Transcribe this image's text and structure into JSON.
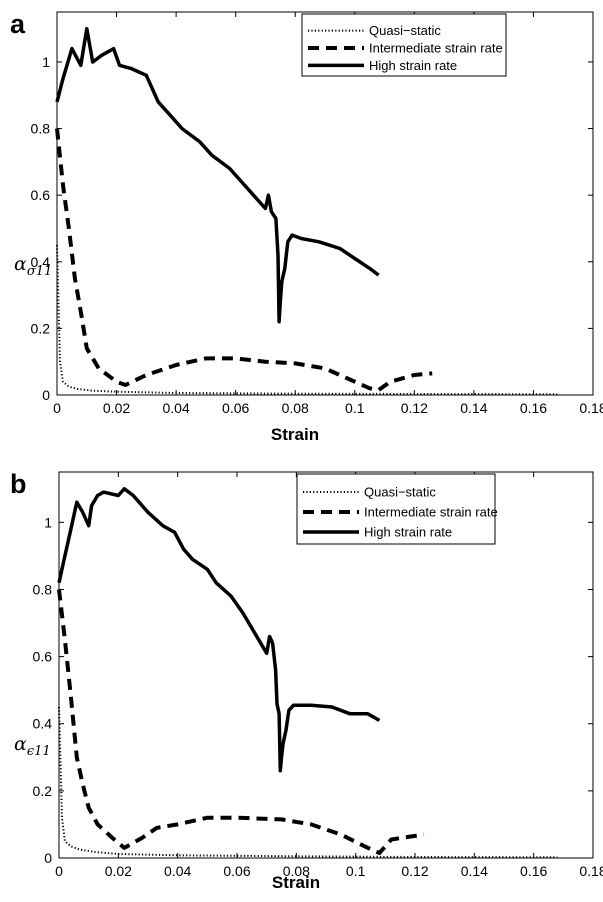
{
  "chart_data": [
    {
      "panel": "a",
      "type": "line",
      "xlabel": "Strain",
      "ylabel_base": "α",
      "ylabel_sub": "σ11",
      "xlim": [
        0,
        0.18
      ],
      "ylim": [
        0,
        1.15
      ],
      "xticks": [
        0,
        0.02,
        0.04,
        0.06,
        0.08,
        0.1,
        0.12,
        0.14,
        0.16,
        0.18
      ],
      "xtick_labels": [
        "0",
        "0.02",
        "0.04",
        "0.06",
        "0.08",
        "0.1",
        "0.12",
        "0.14",
        "0.16",
        "0.18"
      ],
      "yticks": [
        0,
        0.2,
        0.4,
        0.6,
        0.8,
        1
      ],
      "ytick_labels": [
        "0",
        "0.2",
        "0.4",
        "0.6",
        "0.8",
        "1"
      ],
      "grid": false,
      "legend_position": "top-right",
      "series": [
        {
          "name": "Quasi−static",
          "style": "dotted",
          "x": [
            0,
            0.001,
            0.002,
            0.004,
            0.007,
            0.012,
            0.02,
            0.04,
            0.08,
            0.12,
            0.168
          ],
          "y": [
            0.45,
            0.1,
            0.04,
            0.025,
            0.018,
            0.013,
            0.01,
            0.006,
            0.004,
            0.003,
            0.002
          ]
        },
        {
          "name": "Intermediate strain rate",
          "style": "dashed",
          "x": [
            0,
            0.002,
            0.004,
            0.006,
            0.008,
            0.01,
            0.014,
            0.02,
            0.023,
            0.03,
            0.04,
            0.05,
            0.06,
            0.07,
            0.08,
            0.09,
            0.1,
            0.105,
            0.108,
            0.112,
            0.12,
            0.126
          ],
          "y": [
            0.8,
            0.63,
            0.5,
            0.35,
            0.25,
            0.14,
            0.08,
            0.04,
            0.03,
            0.06,
            0.09,
            0.11,
            0.11,
            0.1,
            0.095,
            0.08,
            0.04,
            0.02,
            0.015,
            0.04,
            0.06,
            0.065
          ]
        },
        {
          "name": "High strain rate",
          "style": "solid",
          "x": [
            0,
            0.002,
            0.005,
            0.008,
            0.01,
            0.012,
            0.015,
            0.019,
            0.021,
            0.025,
            0.03,
            0.034,
            0.038,
            0.042,
            0.048,
            0.052,
            0.058,
            0.062,
            0.066,
            0.07,
            0.071,
            0.072,
            0.0735,
            0.0742,
            0.0746,
            0.075,
            0.0755,
            0.0765,
            0.0775,
            0.079,
            0.082,
            0.088,
            0.095,
            0.1,
            0.105,
            0.108
          ],
          "y": [
            0.88,
            0.95,
            1.04,
            0.99,
            1.1,
            1.0,
            1.02,
            1.04,
            0.99,
            0.98,
            0.96,
            0.88,
            0.84,
            0.8,
            0.76,
            0.72,
            0.68,
            0.64,
            0.6,
            0.56,
            0.6,
            0.55,
            0.53,
            0.42,
            0.22,
            0.28,
            0.34,
            0.38,
            0.46,
            0.48,
            0.47,
            0.46,
            0.44,
            0.41,
            0.38,
            0.36
          ]
        }
      ]
    },
    {
      "panel": "b",
      "type": "line",
      "xlabel": "Strain",
      "ylabel_base": "α",
      "ylabel_sub": "ϵ11",
      "xlim": [
        0,
        0.18
      ],
      "ylim": [
        0,
        1.15
      ],
      "xticks": [
        0,
        0.02,
        0.04,
        0.06,
        0.08,
        0.1,
        0.12,
        0.14,
        0.16,
        0.18
      ],
      "xtick_labels": [
        "0",
        "0.02",
        "0.04",
        "0.06",
        "0.08",
        "0.1",
        "0.12",
        "0.14",
        "0.16",
        "0.18"
      ],
      "yticks": [
        0,
        0.2,
        0.4,
        0.6,
        0.8,
        1
      ],
      "ytick_labels": [
        "0",
        "0.2",
        "0.4",
        "0.6",
        "0.8",
        "1"
      ],
      "grid": false,
      "legend_position": "top-right",
      "series": [
        {
          "name": "Quasi−static",
          "style": "dotted",
          "x": [
            0,
            0.001,
            0.002,
            0.004,
            0.007,
            0.012,
            0.02,
            0.04,
            0.08,
            0.12,
            0.168
          ],
          "y": [
            0.45,
            0.12,
            0.05,
            0.035,
            0.025,
            0.018,
            0.012,
            0.008,
            0.005,
            0.003,
            0.002
          ]
        },
        {
          "name": "Intermediate strain rate",
          "style": "dashed",
          "x": [
            0,
            0.002,
            0.004,
            0.006,
            0.008,
            0.01,
            0.013,
            0.018,
            0.022,
            0.028,
            0.033,
            0.04,
            0.05,
            0.06,
            0.075,
            0.085,
            0.095,
            0.103,
            0.108,
            0.112,
            0.123
          ],
          "y": [
            0.8,
            0.65,
            0.48,
            0.3,
            0.22,
            0.15,
            0.1,
            0.06,
            0.03,
            0.06,
            0.09,
            0.1,
            0.12,
            0.12,
            0.115,
            0.1,
            0.07,
            0.035,
            0.015,
            0.055,
            0.07
          ]
        },
        {
          "name": "High strain rate",
          "style": "solid",
          "x": [
            0,
            0.002,
            0.004,
            0.006,
            0.008,
            0.01,
            0.011,
            0.013,
            0.015,
            0.02,
            0.022,
            0.025,
            0.03,
            0.035,
            0.039,
            0.042,
            0.045,
            0.05,
            0.053,
            0.058,
            0.062,
            0.066,
            0.07,
            0.071,
            0.072,
            0.073,
            0.0735,
            0.0742,
            0.0746,
            0.075,
            0.0755,
            0.0765,
            0.0775,
            0.079,
            0.085,
            0.092,
            0.098,
            0.104,
            0.108
          ],
          "y": [
            0.82,
            0.9,
            0.98,
            1.06,
            1.03,
            0.99,
            1.05,
            1.08,
            1.09,
            1.08,
            1.1,
            1.08,
            1.03,
            0.99,
            0.97,
            0.92,
            0.89,
            0.86,
            0.82,
            0.78,
            0.73,
            0.67,
            0.61,
            0.66,
            0.64,
            0.56,
            0.46,
            0.43,
            0.26,
            0.3,
            0.34,
            0.38,
            0.44,
            0.455,
            0.455,
            0.45,
            0.43,
            0.43,
            0.41
          ]
        }
      ]
    }
  ]
}
